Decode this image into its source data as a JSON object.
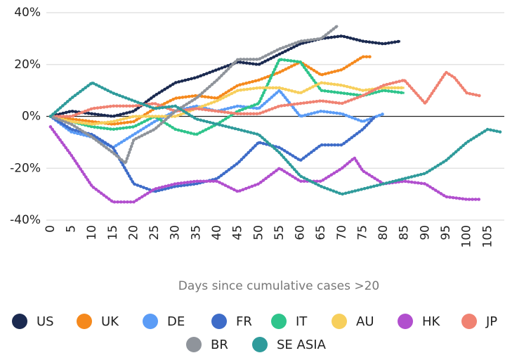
{
  "chart_data": {
    "type": "line",
    "x_label": "Days since cumulative cases >20",
    "xlim": [
      -1,
      109
    ],
    "ylim": [
      -40,
      40
    ],
    "xticks": [
      0,
      5,
      10,
      15,
      20,
      25,
      30,
      35,
      40,
      45,
      50,
      55,
      60,
      65,
      70,
      75,
      80,
      85,
      90,
      95,
      100,
      105
    ],
    "yticks": [
      {
        "value": -40,
        "label": "-40%"
      },
      {
        "value": -20,
        "label": "-20%"
      },
      {
        "value": 0,
        "label": "0%"
      },
      {
        "value": 20,
        "label": "20%"
      },
      {
        "value": 40,
        "label": "40%"
      }
    ],
    "grid": true,
    "series": [
      {
        "name": "US",
        "color": "#1b2a50",
        "x": [
          0,
          5,
          10,
          15,
          20,
          25,
          30,
          35,
          40,
          45,
          50,
          55,
          60,
          65,
          70,
          75,
          80,
          84
        ],
        "values": [
          0,
          2,
          1,
          0,
          2,
          8,
          13,
          15,
          18,
          21,
          20,
          24,
          28,
          30,
          31,
          29,
          28,
          29
        ]
      },
      {
        "name": "UK",
        "color": "#f5891d",
        "x": [
          0,
          5,
          10,
          15,
          20,
          25,
          30,
          35,
          40,
          45,
          50,
          55,
          60,
          65,
          70,
          75,
          77
        ],
        "values": [
          0,
          -1,
          -2,
          -3,
          -2,
          3,
          7,
          8,
          7,
          12,
          14,
          17,
          21,
          16,
          18,
          23,
          23
        ]
      },
      {
        "name": "DE",
        "color": "#5b9cf6",
        "x": [
          0,
          5,
          10,
          15,
          20,
          25,
          30,
          35,
          40,
          45,
          50,
          55,
          60,
          65,
          70,
          75,
          80
        ],
        "values": [
          0,
          -6,
          -8,
          -12,
          -7,
          -2,
          2,
          4,
          2,
          4,
          3,
          10,
          0,
          2,
          1,
          -2,
          1
        ]
      },
      {
        "name": "FR",
        "color": "#3e6cc8",
        "x": [
          0,
          5,
          10,
          15,
          20,
          25,
          30,
          35,
          40,
          45,
          50,
          55,
          60,
          65,
          70,
          75,
          78
        ],
        "values": [
          0,
          -5,
          -7,
          -12,
          -26,
          -29,
          -27,
          -26,
          -24,
          -18,
          -10,
          -12,
          -17,
          -11,
          -11,
          -5,
          0
        ]
      },
      {
        "name": "IT",
        "color": "#2ec48b",
        "x": [
          0,
          5,
          10,
          15,
          20,
          25,
          30,
          35,
          40,
          45,
          50,
          55,
          60,
          65,
          70,
          75,
          80,
          85
        ],
        "values": [
          0,
          -2,
          -4,
          -5,
          -4,
          0,
          -5,
          -7,
          -3,
          2,
          5,
          22,
          21,
          10,
          9,
          8,
          10,
          9
        ]
      },
      {
        "name": "AU",
        "color": "#f7cf5c",
        "x": [
          0,
          5,
          10,
          15,
          20,
          25,
          30,
          35,
          40,
          45,
          50,
          55,
          60,
          65,
          70,
          75,
          80,
          85
        ],
        "values": [
          0,
          -2,
          -3,
          -2,
          0,
          0,
          0,
          3,
          6,
          10,
          11,
          11,
          9,
          13,
          12,
          10,
          11,
          11
        ]
      },
      {
        "name": "HK",
        "color": "#b14fce",
        "x": [
          0,
          5,
          10,
          15,
          20,
          25,
          30,
          35,
          40,
          45,
          50,
          55,
          60,
          65,
          70,
          73,
          75,
          80,
          85,
          90,
          95,
          100,
          103
        ],
        "values": [
          -4,
          -15,
          -27,
          -33,
          -33,
          -28,
          -26,
          -25,
          -25,
          -29,
          -26,
          -20,
          -25,
          -25,
          -20,
          -16,
          -21,
          -26,
          -25,
          -26,
          -31,
          -32,
          -32
        ]
      },
      {
        "name": "JP",
        "color": "#f08272",
        "x": [
          0,
          5,
          10,
          15,
          20,
          25,
          30,
          35,
          40,
          45,
          50,
          55,
          60,
          65,
          70,
          75,
          80,
          85,
          90,
          95,
          97,
          100,
          103
        ],
        "values": [
          0,
          0,
          3,
          4,
          4,
          5,
          2,
          3,
          2,
          1,
          1,
          4,
          5,
          6,
          5,
          8,
          12,
          14,
          5,
          17,
          15,
          9,
          8
        ]
      },
      {
        "name": "BR",
        "color": "#8f949b",
        "x": [
          0,
          5,
          10,
          15,
          18,
          20,
          25,
          30,
          35,
          40,
          45,
          50,
          55,
          60,
          65,
          69
        ],
        "values": [
          0,
          -3,
          -8,
          -14,
          -18,
          -9,
          -5,
          2,
          7,
          14,
          22,
          22,
          26,
          29,
          30,
          35
        ]
      },
      {
        "name": "SE ASIA",
        "color": "#2f9b9b",
        "x": [
          0,
          5,
          10,
          15,
          20,
          25,
          30,
          35,
          40,
          45,
          50,
          55,
          60,
          65,
          70,
          75,
          80,
          85,
          90,
          95,
          100,
          105,
          108
        ],
        "values": [
          0,
          7,
          13,
          9,
          6,
          3,
          4,
          -1,
          -3,
          -5,
          -7,
          -14,
          -23,
          -27,
          -30,
          -28,
          -26,
          -24,
          -22,
          -17,
          -10,
          -5,
          -6
        ]
      }
    ]
  }
}
